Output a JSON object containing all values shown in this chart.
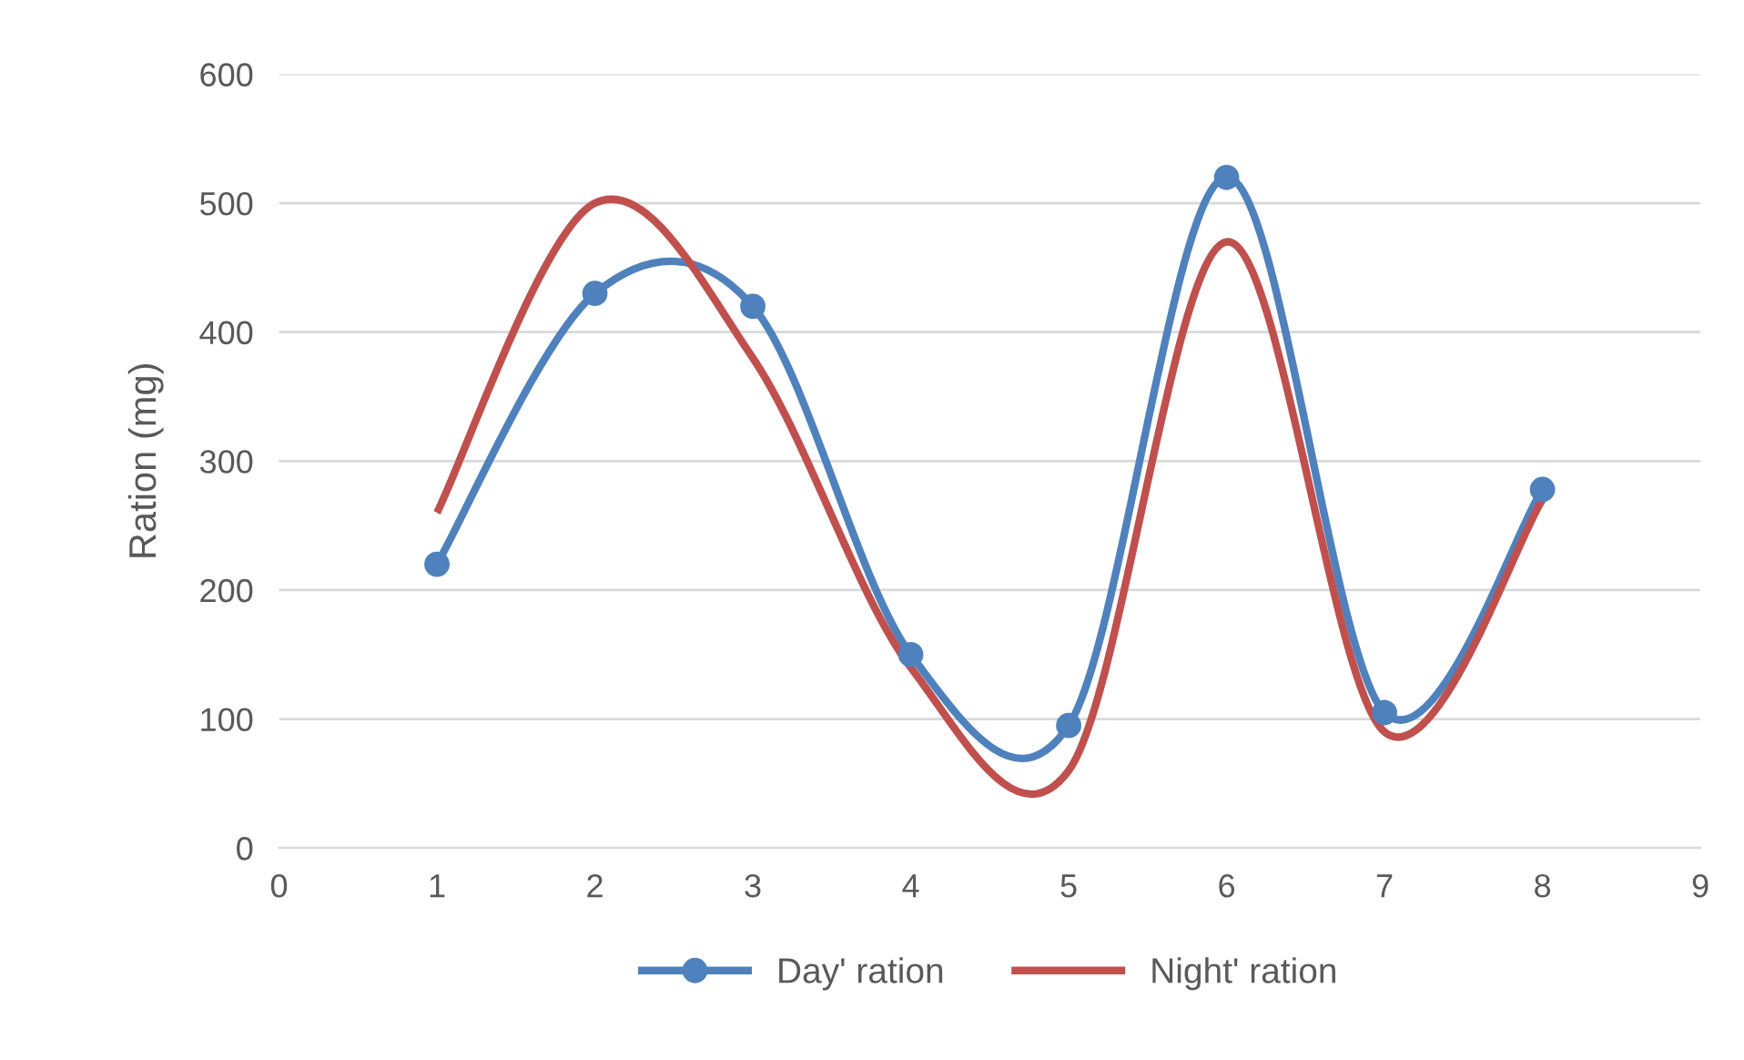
{
  "chart_data": {
    "type": "line",
    "ylabel": "Ration (mg)",
    "x": [
      1,
      2,
      3,
      4,
      5,
      6,
      7,
      8
    ],
    "series": [
      {
        "name": "Day' ration",
        "color": "#4f81bd",
        "marker": "circle",
        "values": [
          220,
          430,
          420,
          150,
          95,
          520,
          105,
          278
        ]
      },
      {
        "name": "Night' ration",
        "color": "#c0504d",
        "marker": "none",
        "values": [
          260,
          500,
          380,
          140,
          60,
          470,
          90,
          270
        ]
      }
    ],
    "xlim": [
      0,
      9
    ],
    "xticks": [
      0,
      1,
      2,
      3,
      4,
      5,
      6,
      7,
      8,
      9
    ],
    "ylim": [
      0,
      600
    ],
    "yticks": [
      0,
      100,
      200,
      300,
      400,
      500,
      600
    ],
    "grid": "y",
    "legend": "bottom",
    "line_style": "solid"
  }
}
